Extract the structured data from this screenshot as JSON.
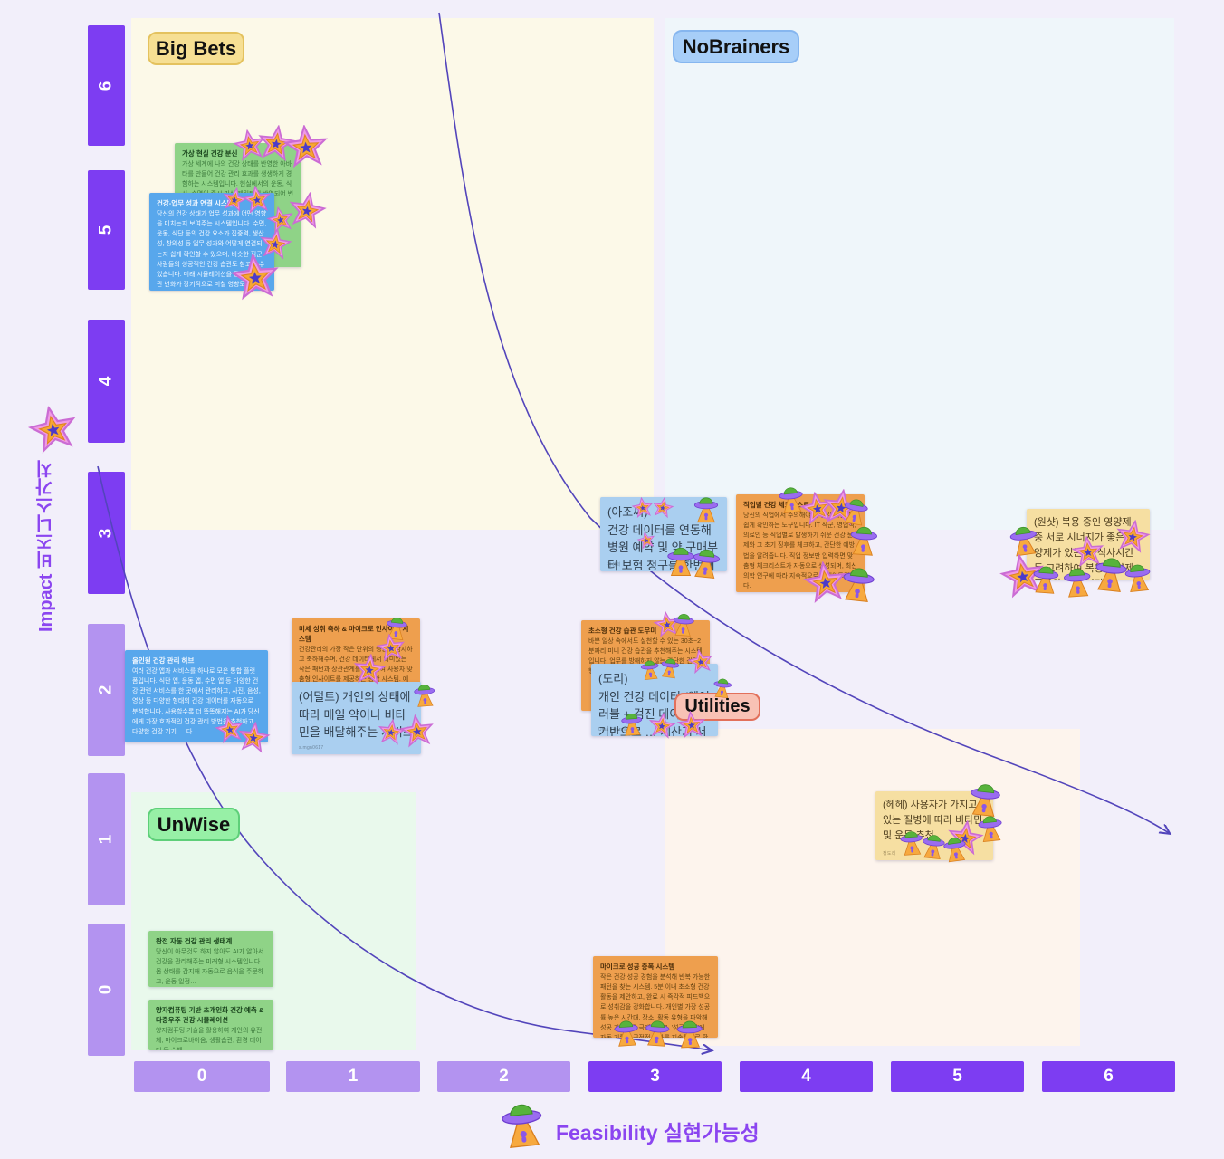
{
  "axes": {
    "y": {
      "label": "Impact 비즈니스가치",
      "ticks": [
        "6",
        "5",
        "4",
        "3",
        "2",
        "1",
        "0"
      ]
    },
    "x": {
      "label": "Feasibility 실현가능성",
      "ticks": [
        "0",
        "1",
        "2",
        "3",
        "4",
        "5",
        "6"
      ]
    }
  },
  "quadrants": [
    {
      "id": "big-bets",
      "label": "Big Bets"
    },
    {
      "id": "nobrainers",
      "label": "NoBrainers"
    },
    {
      "id": "unwise",
      "label": "UnWise"
    },
    {
      "id": "utilities",
      "label": "Utilities"
    }
  ],
  "icons": {
    "impact_icon": "3d-star-sticker",
    "feasibility_icon": "3d-ufo-sticker"
  },
  "colors": {
    "axis_bar_dark": "#7d3df2",
    "axis_bar_light": "#b393f0",
    "axis_label": "#8b45f0",
    "curve": "#5345bb",
    "quad_bigbets_bg": "#fcf9e8",
    "quad_nobrainers_bg": "#eff6fa",
    "quad_unwise_bg": "#e9f9ec",
    "quad_utilities_bg": "#fdf4ed"
  },
  "notes": [
    {
      "title": "가상 현실 건강 분신",
      "body": "가상 세계에 나의 건강 상태를 반영한 아바타를 만들어 건강 관리 효과를 생생하게 경험하는 시스템입니다. 현실에서의 운동, 식사, 수면이 즉시 가상 캐릭터에 반영되어 변화를 눈으로 확인…"
    },
    {
      "title": "건강-업무 성과 연결 시스템",
      "body": "당신의 건강 상태가 업무 성과에 어떤 영향을 미치는지 보여주는 시스템입니다. 수면, 운동, 식단 등의 건강 요소가 집중력, 생산성, 창의성 등 업무 성과와 어떻게 연결되는지 쉽게 확인할 수 있으며, 비슷한 직군 사람들의 성공적인 건강 습관도 참고할 수 있습니다. 미래 시뮬레이션을 통해 건강 습관 변화가 장기적으로 미칠 영향도 예측해 보여줍니다."
    },
    {
      "title": "(아조씨)",
      "body": "건강 데이터를 연동해 병원 예약 및 약 구매부터 보험 청구를 한번에 진행",
      "author": "김성희"
    },
    {
      "title": "직업별 건강 체크리스트",
      "body": "당신의 직업에서 주의해야 할 건강 위험을 쉽게 확인하는 도구입니다. IT 직군, 영업직, 의료인 등 직업별로 발생하기 쉬운 건강 문제와 그 초기 징후를 체크하고, 간단한 예방법을 알려줍니다. 직업 정보만 입력하면 맞춤형 체크리스트가 자동으로 생성되며, 최신 의학 연구에 따라 지속적으로 업데이트됩니다."
    },
    {
      "body": "(원샷) 복용 중인 영양제 중 서로 시너지가 좋은 영양제가 있는지, 식사시간 등 고려하여 복용 영양제 종류와 복용 시간…"
    },
    {
      "title": "미세 성취 축하 & 마이크로 인사이트 시스템",
      "body": "건강관리의 가장 작은 단위의 행동도 감지하고 축하해주며, 건강 데이터에서 의미있는 작은 패턴과 상관관계를 발견하여 사용자 맞춤형 인사이트를 제공하는 통합 시스템. 예를 들어 '오늘 계단 3층 오르기' 같은 작은 목표를 달성하…"
    },
    {
      "body": "(어덜트) 개인의 상태에 따라 매일 약이나 비타민을 배달해주는 서비스",
      "author": "s.mgn0617"
    },
    {
      "title": "초소형 건강 습관 도우미",
      "body": "바쁜 일상 속에서도 실천할 수 있는 30초~2분짜리 미니 건강 습관을 추천해주는 시스템입니다. 업무를 방해하지 않는 간단한 건강 행동을 …"
    },
    {
      "title": "(도리)",
      "body": "개인 건강 데이터 (웨어러블 + 검진 데이터)를 기반으로 … 계산기 서비스 제공",
      "author": "Uma Thurman"
    },
    {
      "title": "올인원 건강 관리 허브",
      "body": "여러 건강 앱과 서비스를 하나로 모은 통합 플랫폼입니다. 식단 앱, 운동 앱, 수면 앱 등 다양한 건강 관련 서비스를 한 곳에서 관리하고, 사진, 음성, 영상 등 다양한 형태의 건강 데이터를 자동으로 분석합니다. 사용할수록 더 똑똑해지는 AI가 당신에게 가장 효과적인 건강 관리 방법을 추천하고, 다양한 건강 기기 … 다."
    },
    {
      "title": "완전 자동 건강 관리 생태계",
      "body": "당신이 아무것도 하지 않아도 AI가 알아서 건강을 관리해주는 미래형 시스템입니다. 몸 상태를 감지해 자동으로 음식을 주문하고, 운동 일정…"
    },
    {
      "title": "양자컴퓨팅 기반 초개인화 건강 예측 & 다중우주 건강 시뮬레이션",
      "body": "양자컴퓨팅 기술을 활용하여 개인의 유전체, 마이크로바이옴, 생활습관, 환경 데이터 등 수백…"
    },
    {
      "title": "마이크로 성공 증폭 시스템",
      "body": "작은 건강 성공 경험을 분석해 반복 가능한 패턴을 찾는 시스템. 5분 이내 초소형 건강 활동을 제안하고, 완료 시 즉각적 피드백으로 성취감을 강화합니다. 개인별 가장 성공률 높은 시간대, 장소, 활동 유형을 파악해 성공 가능성을 극대화하고, '성공 일기'에 자동 기록해 긍정적 변화를 지속적으로 확인할 수 있습니다."
    },
    {
      "body": "(헤헤) 사용자가 가지고 있는 질병에 따라 비타민 및 운동 추천",
      "author": "정도리"
    }
  ]
}
